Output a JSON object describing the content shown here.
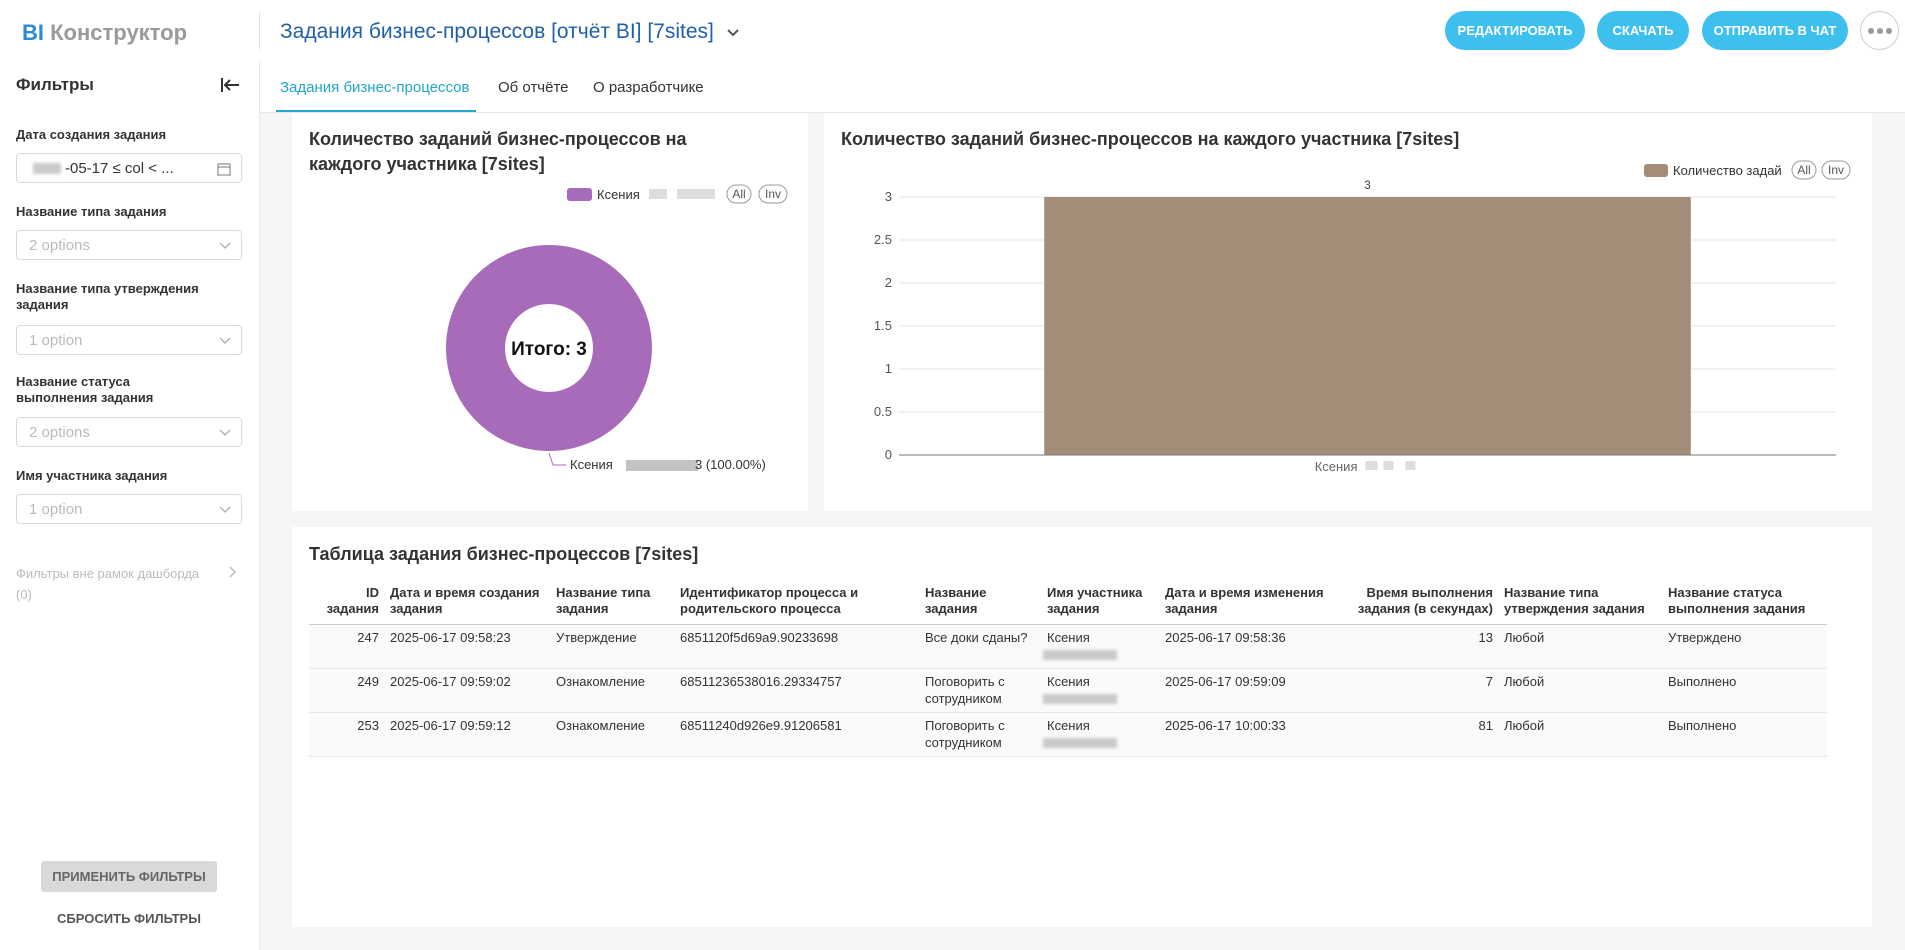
{
  "header": {
    "logo_prefix": "BI",
    "logo": "Конструктор",
    "title": "Задания бизнес-процессов [отчёт BI] [7sites]",
    "buttons": [
      "РЕДАКТИРОВАТЬ",
      "СКАЧАТЬ",
      "ОТПРАВИТЬ В ЧАТ"
    ]
  },
  "sidebar": {
    "title": "Фильтры",
    "filters": [
      {
        "label": "Дата создания задания",
        "value": "-05-17 ≤ col < ..."
      },
      {
        "label": "Название типа задания",
        "value": "2 options"
      },
      {
        "label": "Название типа утверждения задания",
        "value": "1 option"
      },
      {
        "label": "Название статуса выполнения задания",
        "value": "2 options"
      },
      {
        "label": "Имя участника задания",
        "value": "1 option"
      }
    ],
    "out_of_scope": "Фильтры вне рамок дашборда",
    "out_of_scope_count": "(0)",
    "apply": "ПРИМЕНИТЬ ФИЛЬТРЫ",
    "reset": "СБРОСИТЬ ФИЛЬТРЫ"
  },
  "tabs": [
    "Задания бизнес-процессов",
    "Об отчёте",
    "О разработчике"
  ],
  "chart_data": [
    {
      "type": "donut",
      "title": "Количество заданий бизнес-процессов на каждого участника [7sites]",
      "center_label": "Итого: 3",
      "categories": [
        "Ксения"
      ],
      "values": [
        3
      ],
      "value_labels": [
        "3 (100.00%)"
      ],
      "colors": [
        "#a86bba"
      ],
      "legend_controls": [
        "All",
        "Inv"
      ]
    },
    {
      "type": "bar",
      "title": "Количество заданий бизнес-процессов на каждого участника [7sites]",
      "categories": [
        "Ксения"
      ],
      "series": [
        {
          "name": "Количество задай",
          "color": "#a38c78",
          "values": [
            3
          ]
        }
      ],
      "ylim": [
        0,
        3
      ],
      "yticks": [
        0,
        0.5,
        1,
        1.5,
        2,
        2.5,
        3
      ],
      "grid": true,
      "legend_controls": [
        "All",
        "Inv"
      ]
    }
  ],
  "table": {
    "title": "Таблица задания бизнес-процессов [7sites]",
    "columns": [
      "ID задания",
      "Дата и время создания задания",
      "Название типа задания",
      "Идентификатор процесса и родительского процесса",
      "Название задания",
      "Имя участника задания",
      "Дата и время изменения задания",
      "Время выполнения задания (в секундах)",
      "Название типа утверждения задания",
      "Название статуса выполнения задания"
    ],
    "rows": [
      [
        247,
        "2025-06-17 09:58:23",
        "Утверждение",
        "6851120f5d69a9.90233698",
        "Все доки сданы?",
        "Ксения",
        "2025-06-17 09:58:36",
        13,
        "Любой",
        "Утверждено"
      ],
      [
        249,
        "2025-06-17 09:59:02",
        "Ознакомление",
        "68511236538016.29334757",
        "Поговорить с сотрудником",
        "Ксения",
        "2025-06-17 09:59:09",
        7,
        "Любой",
        "Выполнено"
      ],
      [
        253,
        "2025-06-17 09:59:12",
        "Ознакомление",
        "68511240d926e9.91206581",
        "Поговорить с сотрудником",
        "Ксения",
        "2025-06-17 10:00:33",
        81,
        "Любой",
        "Выполнено"
      ]
    ]
  }
}
